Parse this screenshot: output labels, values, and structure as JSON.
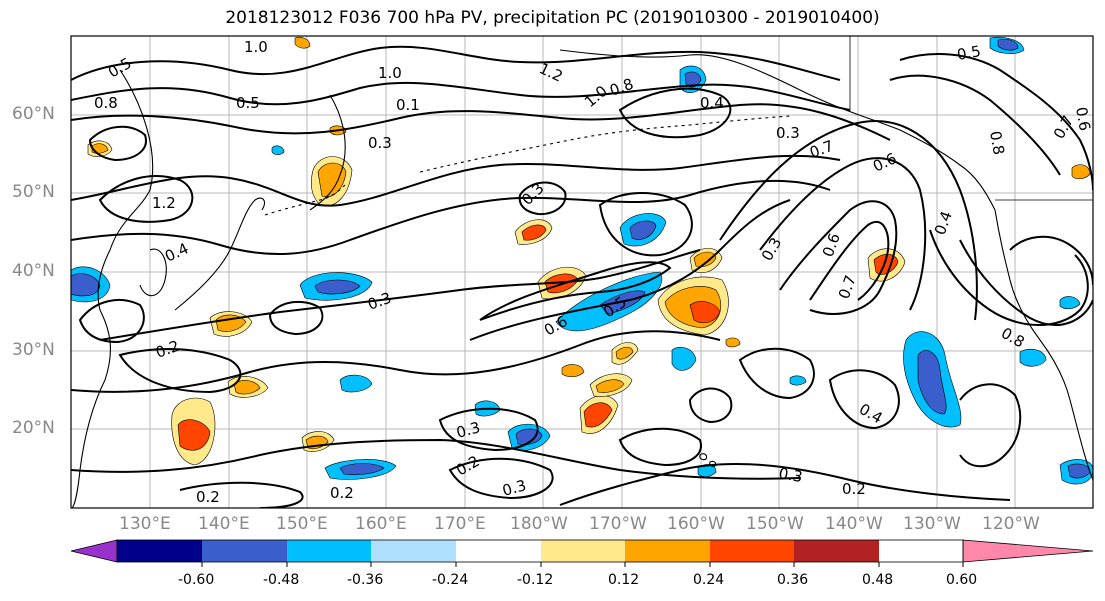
{
  "title": "2018123012 F036 700 hPa PV, precipitation PC (2019010300 - 2019010400)",
  "lat_labels": [
    "60°N",
    "50°N",
    "40°N",
    "30°N",
    "20°N"
  ],
  "lon_labels": [
    "130°E",
    "140°E",
    "150°E",
    "160°E",
    "170°E",
    "180°W",
    "170°W",
    "160°W",
    "150°W",
    "140°W",
    "130°W",
    "120°W"
  ],
  "colorbar": {
    "tick_labels": [
      "-0.60",
      "-0.48",
      "-0.36",
      "-0.24",
      "-0.12",
      "0.12",
      "0.24",
      "0.36",
      "0.48",
      "0.60"
    ],
    "colors": [
      "#9932cc",
      "#00008b",
      "#3a5fcd",
      "#00bfff",
      "#b0e0ff",
      "#ffffff",
      "#ffe98a",
      "#ffa500",
      "#ff4500",
      "#b22222",
      "#ff88aa"
    ]
  },
  "contour_labels": [
    "1.0",
    "1.0",
    "0.5",
    "0.8",
    "1.2",
    "1.2",
    "0.5",
    "0.4",
    "0.3",
    "0.3",
    "0.3",
    "0.2",
    "0.2",
    "0.2",
    "0.3",
    "0.3",
    "0.2",
    "0.5",
    "0.6",
    "0.3",
    "0.6",
    "0.7",
    "0.3",
    "0.4",
    "0.7",
    "0.6",
    "0.4",
    "0.3",
    "0.2",
    "0.4",
    "0.8",
    "0.5",
    "0.8",
    "1.0",
    "0.8",
    "0.1",
    "0.7",
    "0.6"
  ]
}
